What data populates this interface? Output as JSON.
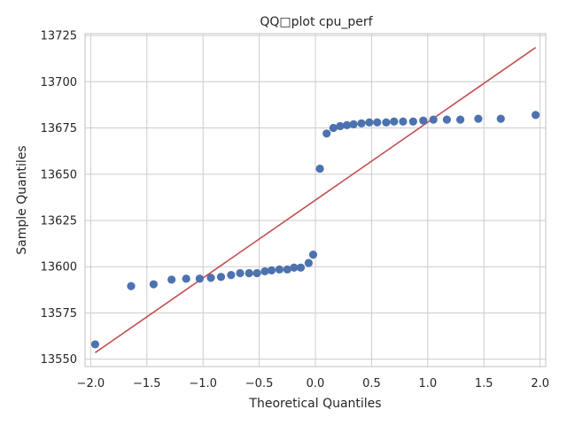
{
  "chart_data": {
    "type": "scatter",
    "title": "QQ□plot cpu_perf",
    "xlabel": "Theoretical Quantiles",
    "ylabel": "Sample Quantiles",
    "xlim": [
      -2.05,
      2.05
    ],
    "ylim": [
      13546,
      13726
    ],
    "xticks": [
      -2.0,
      -1.5,
      -1.0,
      -0.5,
      0.0,
      0.5,
      1.0,
      1.5,
      2.0
    ],
    "xtick_labels": [
      "−2.0",
      "−1.5",
      "−1.0",
      "−0.5",
      "0.0",
      "0.5",
      "1.0",
      "1.5",
      "2.0"
    ],
    "yticks": [
      13550,
      13575,
      13600,
      13625,
      13650,
      13675,
      13700,
      13725
    ],
    "ytick_labels": [
      "13550",
      "13575",
      "13600",
      "13625",
      "13650",
      "13675",
      "13700",
      "13725"
    ],
    "grid": true,
    "points": [
      {
        "x": -1.96,
        "y": 13558
      },
      {
        "x": -1.64,
        "y": 13589.5
      },
      {
        "x": -1.44,
        "y": 13590.5
      },
      {
        "x": -1.28,
        "y": 13593
      },
      {
        "x": -1.15,
        "y": 13593.5
      },
      {
        "x": -1.03,
        "y": 13593.5
      },
      {
        "x": -0.93,
        "y": 13594
      },
      {
        "x": -0.84,
        "y": 13594.5
      },
      {
        "x": -0.75,
        "y": 13595.5
      },
      {
        "x": -0.67,
        "y": 13596.5
      },
      {
        "x": -0.59,
        "y": 13596.5
      },
      {
        "x": -0.52,
        "y": 13596.5
      },
      {
        "x": -0.45,
        "y": 13597.5
      },
      {
        "x": -0.39,
        "y": 13598
      },
      {
        "x": -0.32,
        "y": 13598.5
      },
      {
        "x": -0.25,
        "y": 13598.5
      },
      {
        "x": -0.19,
        "y": 13599.5
      },
      {
        "x": -0.13,
        "y": 13599.5
      },
      {
        "x": -0.06,
        "y": 13602
      },
      {
        "x": -0.02,
        "y": 13606.5
      },
      {
        "x": 0.04,
        "y": 13653
      },
      {
        "x": 0.1,
        "y": 13672
      },
      {
        "x": 0.16,
        "y": 13675
      },
      {
        "x": 0.22,
        "y": 13676
      },
      {
        "x": 0.28,
        "y": 13676.5
      },
      {
        "x": 0.34,
        "y": 13677
      },
      {
        "x": 0.41,
        "y": 13677.5
      },
      {
        "x": 0.48,
        "y": 13678
      },
      {
        "x": 0.55,
        "y": 13678
      },
      {
        "x": 0.63,
        "y": 13678
      },
      {
        "x": 0.7,
        "y": 13678.5
      },
      {
        "x": 0.78,
        "y": 13678.5
      },
      {
        "x": 0.87,
        "y": 13678.5
      },
      {
        "x": 0.96,
        "y": 13679
      },
      {
        "x": 1.05,
        "y": 13679.5
      },
      {
        "x": 1.17,
        "y": 13679.5
      },
      {
        "x": 1.29,
        "y": 13679.5
      },
      {
        "x": 1.45,
        "y": 13680
      },
      {
        "x": 1.65,
        "y": 13680
      },
      {
        "x": 1.96,
        "y": 13682
      }
    ],
    "reference_line": {
      "x": [
        -1.96,
        1.96
      ],
      "y": [
        13553.5,
        13718.5
      ],
      "color": "#c44e52"
    },
    "marker_color": "#4c72b0",
    "grid_color": "#cccccc"
  }
}
